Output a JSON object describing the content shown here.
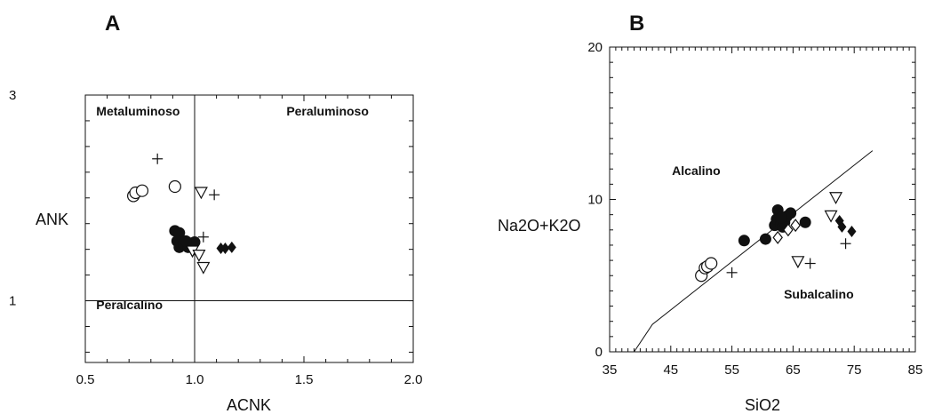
{
  "figure": {
    "colors": {
      "ink": "#111111",
      "background": "#ffffff"
    }
  },
  "chart_data": [
    {
      "type": "scatter",
      "panel_label": "A",
      "xlabel": "ACNK",
      "ylabel": "ANK",
      "xlim": [
        0.5,
        2.0
      ],
      "ylim": [
        0.4,
        3.0
      ],
      "x_ticks": [
        0.5,
        1.0,
        1.5,
        2.0
      ],
      "x_tick_labels": [
        "0.5",
        "1.0",
        "1.5",
        "2.0"
      ],
      "y_ticks": [
        1,
        3
      ],
      "y_tick_labels": [
        "1",
        "3"
      ],
      "grid": false,
      "boundary_lines": [
        {
          "orientation": "vertical",
          "x": 1.0
        },
        {
          "orientation": "horizontal",
          "y": 1.0
        }
      ],
      "region_labels": [
        {
          "text": "Metaluminoso",
          "x": 0.55,
          "y": 2.8
        },
        {
          "text": "Peraluminoso",
          "x": 1.42,
          "y": 2.8
        },
        {
          "text": "Peralcalino",
          "x": 0.55,
          "y": 0.92
        }
      ],
      "series": [
        {
          "marker": "open-circle",
          "points": [
            [
              0.72,
              2.02
            ],
            [
              0.73,
              2.05
            ],
            [
              0.76,
              2.07
            ],
            [
              0.91,
              2.11
            ]
          ]
        },
        {
          "marker": "filled-circle",
          "points": [
            [
              0.91,
              1.68
            ],
            [
              0.93,
              1.66
            ],
            [
              0.92,
              1.58
            ],
            [
              0.93,
              1.52
            ],
            [
              0.95,
              1.55
            ],
            [
              0.97,
              1.52
            ],
            [
              0.98,
              1.56
            ],
            [
              1.0,
              1.57
            ],
            [
              0.96,
              1.58
            ]
          ]
        },
        {
          "marker": "filled-diamond",
          "points": [
            [
              1.12,
              1.51
            ],
            [
              1.14,
              1.51
            ],
            [
              1.17,
              1.52
            ]
          ]
        },
        {
          "marker": "open-triangle-down",
          "points": [
            [
              0.99,
              1.48
            ],
            [
              1.02,
              1.44
            ],
            [
              1.04,
              1.32
            ],
            [
              1.03,
              2.05
            ]
          ]
        },
        {
          "marker": "plus",
          "points": [
            [
              0.83,
              2.38
            ],
            [
              1.04,
              1.62
            ],
            [
              1.09,
              2.03
            ]
          ]
        }
      ]
    },
    {
      "type": "scatter",
      "panel_label": "B",
      "xlabel": "SiO2",
      "ylabel": "Na2O+K2O",
      "xlim": [
        35,
        85
      ],
      "ylim": [
        0,
        20
      ],
      "x_ticks": [
        35,
        45,
        55,
        65,
        75,
        85
      ],
      "x_tick_labels": [
        "35",
        "45",
        "55",
        "65",
        "75",
        "85"
      ],
      "y_ticks": [
        0,
        10,
        20
      ],
      "y_tick_labels": [
        "0",
        "10",
        "20"
      ],
      "grid": false,
      "boundary_line": [
        [
          39.0,
          0.0
        ],
        [
          42.0,
          1.8
        ],
        [
          78.0,
          13.2
        ]
      ],
      "region_labels": [
        {
          "text": "Alcalino",
          "x": 45.2,
          "y": 11.6
        },
        {
          "text": "Subalcalino",
          "x": 63.5,
          "y": 3.5
        }
      ],
      "series": [
        {
          "marker": "open-circle",
          "points": [
            [
              50.0,
              5.0
            ],
            [
              50.6,
              5.5
            ],
            [
              51.0,
              5.6
            ],
            [
              51.6,
              5.8
            ]
          ]
        },
        {
          "marker": "filled-circle",
          "points": [
            [
              57.0,
              7.3
            ],
            [
              60.5,
              7.4
            ],
            [
              62.0,
              8.3
            ],
            [
              62.3,
              8.7
            ],
            [
              62.5,
              9.3
            ],
            [
              63.0,
              8.4
            ],
            [
              63.3,
              8.2
            ],
            [
              63.6,
              8.5
            ],
            [
              64.0,
              8.9
            ],
            [
              64.6,
              9.1
            ],
            [
              63.0,
              8.8
            ],
            [
              67.0,
              8.5
            ]
          ]
        },
        {
          "marker": "open-diamond",
          "points": [
            [
              62.5,
              7.5
            ],
            [
              64.2,
              8.0
            ],
            [
              65.4,
              8.3
            ]
          ]
        },
        {
          "marker": "filled-diamond",
          "points": [
            [
              72.6,
              8.6
            ],
            [
              73.0,
              8.2
            ],
            [
              74.6,
              7.9
            ]
          ]
        },
        {
          "marker": "open-triangle-down",
          "points": [
            [
              65.8,
              5.9
            ],
            [
              71.2,
              8.9
            ],
            [
              72.0,
              10.1
            ]
          ]
        },
        {
          "marker": "plus",
          "points": [
            [
              55.0,
              5.2
            ],
            [
              67.8,
              5.8
            ],
            [
              73.6,
              7.1
            ]
          ]
        }
      ]
    }
  ]
}
